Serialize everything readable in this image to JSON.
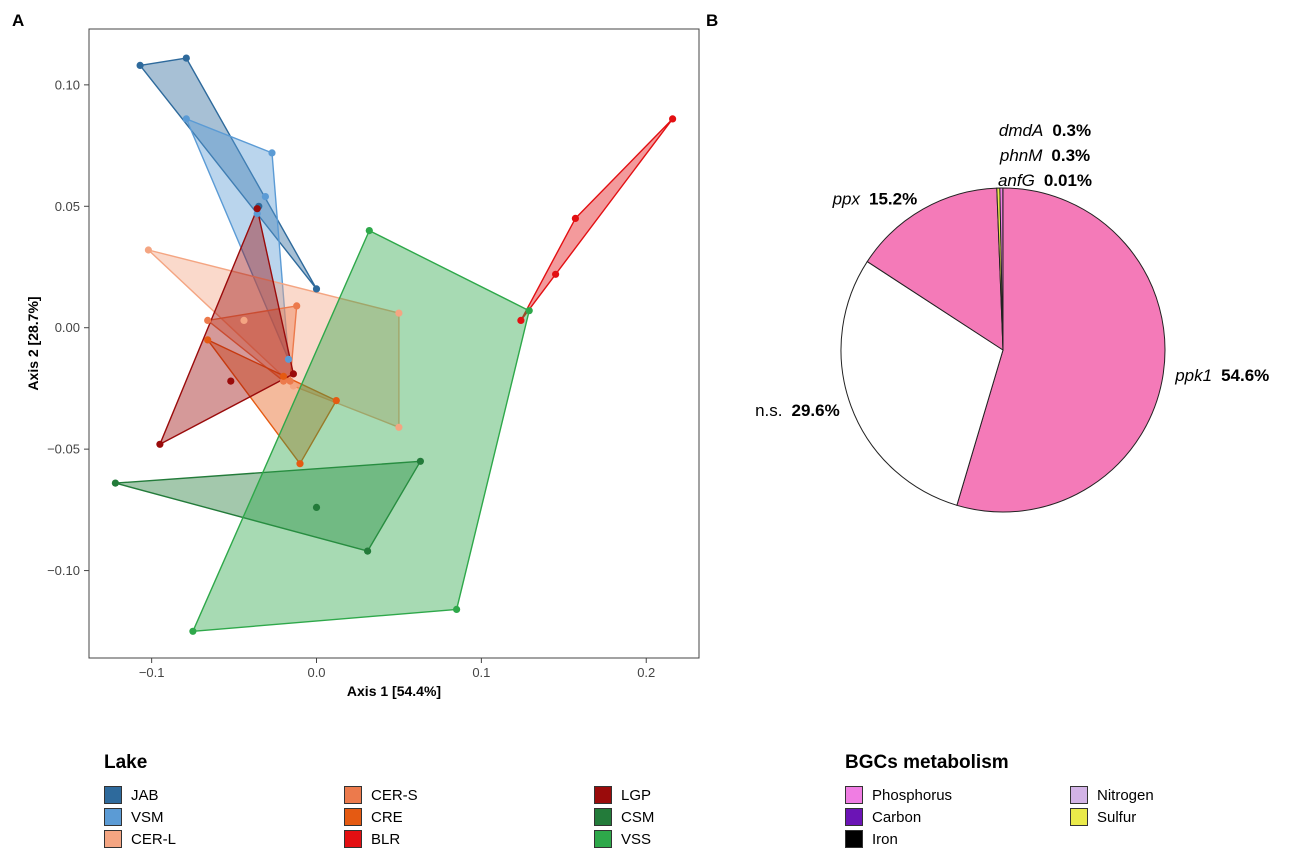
{
  "panels": {
    "a": "A",
    "b": "B"
  },
  "colors": {
    "JAB": "#2e6a9c",
    "VSM": "#5b9bd5",
    "CER-L": "#f4a582",
    "CER-S": "#ec7a4c",
    "CRE": "#e55a12",
    "BLR": "#e30f12",
    "LGP": "#9a0b0b",
    "CSM": "#237b3a",
    "VSS": "#2ea84a",
    "Phosphorus": "#f07de3",
    "Carbon": "#6b14b5",
    "Iron": "#000000",
    "Nitrogen": "#d2b3e6",
    "Sulfur": "#eaea4a",
    "ppk1": "#f47ab8",
    "ppx": "#f47ab8",
    "n.s.": "#ffffff",
    "dmdA": "#eaea4a",
    "phnM": "#f07de3",
    "anfG": "#d2b3e6"
  },
  "chart_data": [
    {
      "type": "scatter",
      "variant": "ordination-hulls",
      "xlabel": "Axis 1 [54.4%]",
      "ylabel": "Axis 2 [28.7%]",
      "xlim": [
        -0.138,
        0.232
      ],
      "ylim": [
        -0.136,
        0.123
      ],
      "x_ticks": [
        -0.1,
        0,
        0.1,
        0.2
      ],
      "x_tick_labels": [
        "−0.1",
        "0.0",
        "0.1",
        "0.2"
      ],
      "y_ticks": [
        -0.1,
        -0.05,
        0,
        0.05,
        0.1
      ],
      "y_tick_labels": [
        "−0.10",
        "−0.05",
        "0.00",
        "0.05",
        "0.10"
      ],
      "grid": false,
      "series": [
        {
          "name": "JAB",
          "hull": true,
          "points": [
            [
              -0.107,
              0.108
            ],
            [
              -0.079,
              0.111
            ],
            [
              -0.035,
              0.05
            ],
            [
              0,
              0.016
            ]
          ]
        },
        {
          "name": "VSM",
          "hull": true,
          "points": [
            [
              -0.079,
              0.086
            ],
            [
              -0.027,
              0.072
            ],
            [
              -0.031,
              0.054
            ],
            [
              -0.017,
              -0.013
            ],
            [
              -0.036,
              0.047
            ]
          ]
        },
        {
          "name": "CER-L",
          "hull": true,
          "points": [
            [
              -0.102,
              0.032
            ],
            [
              -0.044,
              0.003
            ],
            [
              0.05,
              0.006
            ],
            [
              0.05,
              -0.041
            ],
            [
              -0.014,
              -0.024
            ]
          ]
        },
        {
          "name": "CER-S",
          "hull": true,
          "points": [
            [
              -0.066,
              0.003
            ],
            [
              -0.012,
              0.009
            ],
            [
              -0.016,
              -0.022
            ],
            [
              -0.02,
              -0.022
            ]
          ]
        },
        {
          "name": "CRE",
          "hull": true,
          "points": [
            [
              -0.066,
              -0.005
            ],
            [
              -0.01,
              -0.056
            ],
            [
              0.012,
              -0.03
            ],
            [
              -0.02,
              -0.02
            ]
          ]
        },
        {
          "name": "BLR",
          "hull": true,
          "points": [
            [
              0.124,
              0.003
            ],
            [
              0.145,
              0.022
            ],
            [
              0.157,
              0.045
            ],
            [
              0.216,
              0.086
            ]
          ]
        },
        {
          "name": "LGP",
          "hull": true,
          "points": [
            [
              -0.095,
              -0.048
            ],
            [
              -0.052,
              -0.022
            ],
            [
              -0.036,
              0.049
            ],
            [
              -0.014,
              -0.019
            ]
          ]
        },
        {
          "name": "CSM",
          "hull": true,
          "points": [
            [
              -0.122,
              -0.064
            ],
            [
              0.063,
              -0.055
            ],
            [
              0.031,
              -0.092
            ],
            [
              0,
              -0.074
            ]
          ]
        },
        {
          "name": "VSS",
          "hull": true,
          "points": [
            [
              0.032,
              0.04
            ],
            [
              0.129,
              0.007
            ],
            [
              0.085,
              -0.116
            ],
            [
              -0.075,
              -0.125
            ]
          ]
        }
      ]
    },
    {
      "type": "pie",
      "start_angle_deg": 0,
      "direction": "clockwise",
      "slices": [
        {
          "label": "ppk1",
          "value": 54.6,
          "value_label": "54.6%"
        },
        {
          "label": "n.s.",
          "value": 29.6,
          "value_label": "29.6%"
        },
        {
          "label": "ppx",
          "value": 15.2,
          "value_label": "15.2%"
        },
        {
          "label": "dmdA",
          "value": 0.3,
          "value_label": "0.3%"
        },
        {
          "label": "phnM",
          "value": 0.3,
          "value_label": "0.3%"
        },
        {
          "label": "anfG",
          "value": 0.01,
          "value_label": "0.01%"
        }
      ]
    }
  ],
  "legends": {
    "lake": {
      "title": "Lake",
      "items": [
        "JAB",
        "VSM",
        "CER-L",
        "CER-S",
        "CRE",
        "BLR",
        "LGP",
        "CSM",
        "VSS"
      ]
    },
    "bgc": {
      "title": "BGCs metabolism",
      "items": [
        "Phosphorus",
        "Carbon",
        "Iron",
        "Nitrogen",
        "Sulfur"
      ]
    }
  }
}
